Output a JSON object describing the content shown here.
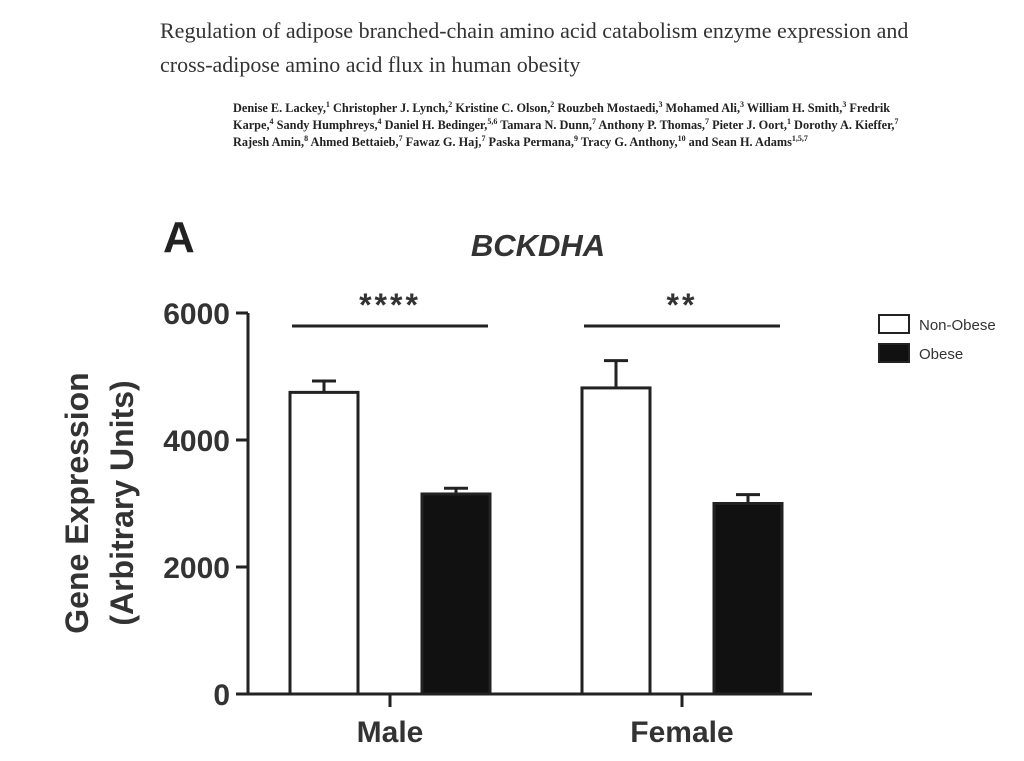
{
  "paper": {
    "title": "Regulation of adipose branched-chain amino acid catabolism enzyme expression and cross-adipose amino acid flux in human obesity",
    "authors": [
      {
        "name": "Denise E. Lackey,",
        "aff": "1"
      },
      {
        "name": "Christopher J. Lynch,",
        "aff": "2"
      },
      {
        "name": "Kristine C. Olson,",
        "aff": "2"
      },
      {
        "name": "Rouzbeh Mostaedi,",
        "aff": "3"
      },
      {
        "name": "Mohamed Ali,",
        "aff": "3"
      },
      {
        "name": "William H. Smith,",
        "aff": "3"
      },
      {
        "name": "Fredrik Karpe,",
        "aff": "4"
      },
      {
        "name": "Sandy Humphreys,",
        "aff": "4"
      },
      {
        "name": "Daniel H. Bedinger,",
        "aff": "5,6"
      },
      {
        "name": "Tamara N. Dunn,",
        "aff": "7"
      },
      {
        "name": "Anthony P. Thomas,",
        "aff": "7"
      },
      {
        "name": "Pieter J. Oort,",
        "aff": "1"
      },
      {
        "name": "Dorothy A. Kieffer,",
        "aff": "7"
      },
      {
        "name": "Rajesh Amin,",
        "aff": "8"
      },
      {
        "name": "Ahmed Bettaieb,",
        "aff": "7"
      },
      {
        "name": "Fawaz G. Haj,",
        "aff": "7"
      },
      {
        "name": "Paska Permana,",
        "aff": "9"
      },
      {
        "name": "Tracy G. Anthony,",
        "aff": "10"
      },
      {
        "name": "and Sean H. Adams",
        "aff": "1,5,7"
      }
    ]
  },
  "chart_data": {
    "type": "bar",
    "panel_label": "A",
    "title": "BCKDHA",
    "ylabel_line1": "Gene Expression",
    "ylabel_line2": "(Arbitrary Units)",
    "xlabel": "",
    "ylim": [
      0,
      6000
    ],
    "yticks": [
      0,
      2000,
      4000,
      6000
    ],
    "categories": [
      "Male",
      "Female"
    ],
    "series": [
      {
        "name": "Non-Obese",
        "fill": "#ffffff",
        "values": [
          4750,
          4820
        ],
        "errors": [
          180,
          430
        ]
      },
      {
        "name": "Obese",
        "fill": "#111111",
        "values": [
          3150,
          3000
        ],
        "errors": [
          90,
          140
        ]
      }
    ],
    "significance": [
      "****",
      "**"
    ],
    "legend_position": "top-right",
    "grid": false
  }
}
